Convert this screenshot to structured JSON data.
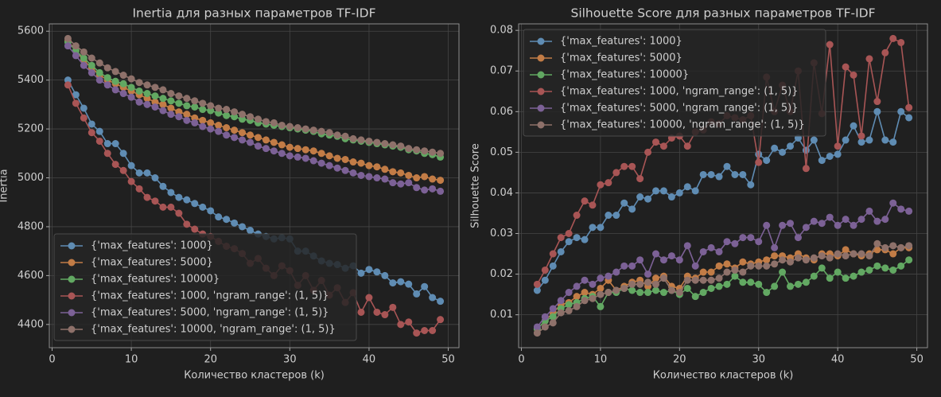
{
  "chart_data": [
    {
      "type": "line",
      "title": "Inertia для разных параметров TF-IDF",
      "xlabel": "Количество кластеров (k)",
      "ylabel": "Inertia",
      "x": [
        2,
        3,
        4,
        5,
        6,
        7,
        8,
        9,
        10,
        11,
        12,
        13,
        14,
        15,
        16,
        17,
        18,
        19,
        20,
        21,
        22,
        23,
        24,
        25,
        26,
        27,
        28,
        29,
        30,
        31,
        32,
        33,
        34,
        35,
        36,
        37,
        38,
        39,
        40,
        41,
        42,
        43,
        44,
        45,
        46,
        47,
        48,
        49
      ],
      "xlim": [
        -0.35,
        51.35
      ],
      "xticks": [
        0,
        10,
        20,
        30,
        40,
        50
      ],
      "ylim": [
        4305,
        5630
      ],
      "yticks": [
        4400,
        4600,
        4800,
        5000,
        5200,
        5400,
        5600
      ],
      "grid": true,
      "legend": "lower left",
      "series": [
        {
          "name": "{'max_features': 1000}",
          "color": "#5f8cb3",
          "values": [
            5400,
            5340,
            5285,
            5220,
            5190,
            5140,
            5140,
            5100,
            5050,
            5020,
            5020,
            5000,
            4965,
            4940,
            4920,
            4910,
            4895,
            4880,
            4865,
            4840,
            4830,
            4815,
            4800,
            4785,
            4770,
            4760,
            4750,
            4755,
            4750,
            4700,
            4700,
            4680,
            4660,
            4650,
            4645,
            4630,
            4640,
            4610,
            4625,
            4615,
            4600,
            4570,
            4575,
            4565,
            4525,
            4555,
            4510,
            4495
          ]
        },
        {
          "name": "{'max_features': 5000}",
          "color": "#c27c46",
          "values": [
            5560,
            5520,
            5480,
            5450,
            5420,
            5400,
            5385,
            5370,
            5355,
            5340,
            5325,
            5310,
            5300,
            5285,
            5270,
            5260,
            5245,
            5235,
            5225,
            5215,
            5205,
            5195,
            5185,
            5175,
            5165,
            5155,
            5145,
            5135,
            5125,
            5120,
            5115,
            5110,
            5100,
            5090,
            5080,
            5075,
            5065,
            5060,
            5050,
            5045,
            5035,
            5025,
            5020,
            5010,
            5000,
            5005,
            4995,
            4990
          ]
        },
        {
          "name": "{'max_features': 10000}",
          "color": "#62a862",
          "values": [
            5555,
            5520,
            5490,
            5460,
            5430,
            5410,
            5395,
            5385,
            5370,
            5355,
            5345,
            5335,
            5325,
            5315,
            5305,
            5295,
            5290,
            5280,
            5275,
            5265,
            5255,
            5250,
            5240,
            5235,
            5225,
            5220,
            5215,
            5210,
            5205,
            5200,
            5195,
            5190,
            5180,
            5175,
            5170,
            5160,
            5155,
            5150,
            5145,
            5140,
            5135,
            5130,
            5125,
            5115,
            5110,
            5100,
            5095,
            5085
          ]
        },
        {
          "name": "{'max_features': 1000, 'ngram_range': (1, 5)}",
          "color": "#a85555",
          "values": [
            5380,
            5305,
            5245,
            5185,
            5150,
            5100,
            5055,
            5030,
            4985,
            4955,
            4920,
            4905,
            4880,
            4880,
            4855,
            4810,
            4790,
            4770,
            4760,
            4740,
            4720,
            4710,
            4690,
            4650,
            4670,
            4630,
            4600,
            4640,
            4620,
            4560,
            4600,
            4540,
            4580,
            4520,
            4550,
            4490,
            4530,
            4450,
            4510,
            4450,
            4440,
            4470,
            4400,
            4410,
            4365,
            4375,
            4375,
            4420
          ]
        },
        {
          "name": "{'max_features': 5000, 'ngram_range': (1, 5)}",
          "color": "#7c6196",
          "values": [
            5540,
            5500,
            5460,
            5430,
            5400,
            5380,
            5360,
            5345,
            5330,
            5310,
            5300,
            5290,
            5275,
            5260,
            5250,
            5235,
            5225,
            5210,
            5200,
            5190,
            5175,
            5165,
            5155,
            5145,
            5130,
            5120,
            5110,
            5100,
            5090,
            5085,
            5080,
            5070,
            5060,
            5050,
            5040,
            5030,
            5020,
            5010,
            5005,
            5000,
            4995,
            4980,
            4975,
            4980,
            4960,
            4950,
            4955,
            4945
          ]
        },
        {
          "name": "{'max_features': 10000, 'ngram_range': (1, 5)}",
          "color": "#8e716a",
          "values": [
            5570,
            5540,
            5515,
            5490,
            5470,
            5450,
            5435,
            5420,
            5405,
            5390,
            5380,
            5370,
            5360,
            5345,
            5335,
            5325,
            5315,
            5305,
            5295,
            5285,
            5280,
            5270,
            5260,
            5250,
            5240,
            5230,
            5225,
            5215,
            5210,
            5205,
            5200,
            5195,
            5190,
            5185,
            5175,
            5170,
            5160,
            5155,
            5150,
            5145,
            5140,
            5135,
            5130,
            5120,
            5115,
            5110,
            5105,
            5100
          ]
        }
      ]
    },
    {
      "type": "line",
      "title": "Silhouette Score для разных параметров TF-IDF",
      "xlabel": "Количество кластеров (k)",
      "ylabel": "Silhouette Score",
      "x": [
        2,
        3,
        4,
        5,
        6,
        7,
        8,
        9,
        10,
        11,
        12,
        13,
        14,
        15,
        16,
        17,
        18,
        19,
        20,
        21,
        22,
        23,
        24,
        25,
        26,
        27,
        28,
        29,
        30,
        31,
        32,
        33,
        34,
        35,
        36,
        37,
        38,
        39,
        40,
        41,
        42,
        43,
        44,
        45,
        46,
        47,
        48,
        49
      ],
      "xlim": [
        -0.35,
        51.35
      ],
      "xticks": [
        0,
        10,
        20,
        30,
        40,
        50
      ],
      "ylim": [
        0.0019,
        0.0816
      ],
      "yticks": [
        0.01,
        0.02,
        0.03,
        0.04,
        0.05,
        0.06,
        0.07,
        0.08
      ],
      "grid": true,
      "legend": "upper left",
      "series": [
        {
          "name": "{'max_features': 1000}",
          "color": "#5f8cb3",
          "values": [
            0.016,
            0.0185,
            0.022,
            0.0255,
            0.028,
            0.029,
            0.0285,
            0.0315,
            0.0315,
            0.0345,
            0.0345,
            0.0375,
            0.036,
            0.039,
            0.0385,
            0.0405,
            0.0405,
            0.039,
            0.04,
            0.0415,
            0.0405,
            0.0445,
            0.0445,
            0.044,
            0.0465,
            0.0445,
            0.0445,
            0.042,
            0.0495,
            0.048,
            0.051,
            0.05,
            0.0515,
            0.0535,
            0.0505,
            0.053,
            0.048,
            0.049,
            0.0495,
            0.053,
            0.0565,
            0.0525,
            0.053,
            0.06,
            0.053,
            0.0525,
            0.06,
            0.0585
          ]
        },
        {
          "name": "{'max_features': 5000}",
          "color": "#c27c46",
          "values": [
            0.0065,
            0.0085,
            0.0105,
            0.0125,
            0.013,
            0.0145,
            0.0155,
            0.015,
            0.0165,
            0.0185,
            0.016,
            0.017,
            0.018,
            0.0185,
            0.017,
            0.019,
            0.0195,
            0.017,
            0.0165,
            0.0195,
            0.019,
            0.0205,
            0.0205,
            0.022,
            0.0225,
            0.0215,
            0.023,
            0.0225,
            0.023,
            0.0235,
            0.0245,
            0.0245,
            0.024,
            0.025,
            0.024,
            0.0235,
            0.025,
            0.025,
            0.0245,
            0.026,
            0.025,
            0.0245,
            0.025,
            0.026,
            0.026,
            0.025,
            0.0265,
            0.0265
          ]
        },
        {
          "name": "{'max_features': 10000}",
          "color": "#62a862",
          "values": [
            0.0065,
            0.0085,
            0.0095,
            0.0115,
            0.0125,
            0.013,
            0.014,
            0.0145,
            0.012,
            0.0155,
            0.0155,
            0.0165,
            0.016,
            0.0155,
            0.0155,
            0.016,
            0.0155,
            0.016,
            0.015,
            0.0165,
            0.0145,
            0.0155,
            0.0165,
            0.017,
            0.0175,
            0.0195,
            0.018,
            0.018,
            0.0175,
            0.0155,
            0.017,
            0.0205,
            0.017,
            0.0175,
            0.018,
            0.0195,
            0.0215,
            0.019,
            0.0205,
            0.019,
            0.0195,
            0.0205,
            0.021,
            0.022,
            0.0215,
            0.021,
            0.022,
            0.0235
          ]
        },
        {
          "name": "{'max_features': 1000, 'ngram_range': (1, 5)}",
          "color": "#a85555",
          "values": [
            0.0175,
            0.021,
            0.025,
            0.029,
            0.03,
            0.0345,
            0.038,
            0.037,
            0.042,
            0.0425,
            0.045,
            0.0465,
            0.0465,
            0.0435,
            0.05,
            0.0525,
            0.0515,
            0.0535,
            0.054,
            0.0515,
            0.055,
            0.0555,
            0.0575,
            0.057,
            0.059,
            0.0585,
            0.058,
            0.059,
            0.0475,
            0.0685,
            0.06,
            0.0665,
            0.06,
            0.07,
            0.046,
            0.072,
            0.0595,
            0.0765,
            0.0515,
            0.071,
            0.069,
            0.054,
            0.073,
            0.0625,
            0.0745,
            0.078,
            0.077,
            0.061
          ]
        },
        {
          "name": "{'max_features': 5000, 'ngram_range': (1, 5)}",
          "color": "#7c6196",
          "values": [
            0.007,
            0.0095,
            0.0115,
            0.0135,
            0.0155,
            0.017,
            0.0185,
            0.0175,
            0.019,
            0.0195,
            0.0205,
            0.022,
            0.022,
            0.0235,
            0.02,
            0.025,
            0.0235,
            0.0245,
            0.0235,
            0.027,
            0.022,
            0.0255,
            0.0265,
            0.0255,
            0.028,
            0.0275,
            0.029,
            0.029,
            0.028,
            0.032,
            0.0265,
            0.032,
            0.0325,
            0.029,
            0.0315,
            0.033,
            0.0325,
            0.034,
            0.032,
            0.0335,
            0.032,
            0.0335,
            0.0355,
            0.033,
            0.0335,
            0.0375,
            0.036,
            0.0355
          ]
        },
        {
          "name": "{'max_features': 10000, 'ngram_range': (1, 5)}",
          "color": "#8e716a",
          "values": [
            0.0055,
            0.007,
            0.008,
            0.0105,
            0.011,
            0.012,
            0.0135,
            0.014,
            0.015,
            0.0155,
            0.016,
            0.0165,
            0.0175,
            0.0175,
            0.018,
            0.0175,
            0.019,
            0.016,
            0.0155,
            0.0185,
            0.0185,
            0.0185,
            0.0185,
            0.019,
            0.0205,
            0.021,
            0.0205,
            0.022,
            0.022,
            0.022,
            0.0225,
            0.0235,
            0.023,
            0.024,
            0.0235,
            0.024,
            0.0245,
            0.024,
            0.025,
            0.0245,
            0.025,
            0.025,
            0.0245,
            0.0275,
            0.0265,
            0.027,
            0.0265,
            0.027
          ]
        }
      ]
    }
  ]
}
